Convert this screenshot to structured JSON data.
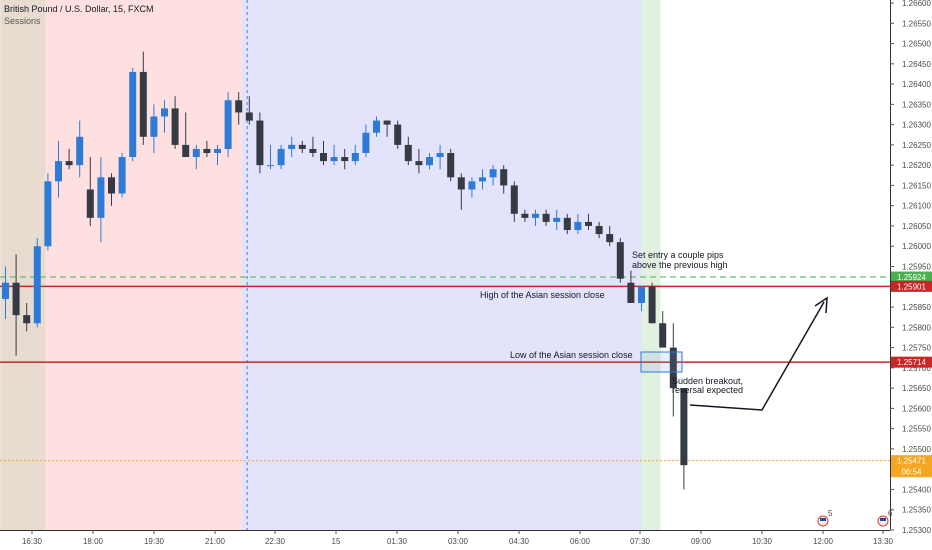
{
  "header": {
    "symbol_line": "British Pound / U.S. Dollar, 15, FXCM",
    "indicator": "Sessions"
  },
  "chart_data": {
    "type": "candlestick",
    "symbol": "British Pound / U.S. Dollar",
    "interval": "15",
    "source": "FXCM",
    "ylim": [
      1.253,
      1.266
    ],
    "y_ticks": [
      "1.26600",
      "1.26550",
      "1.26500",
      "1.26450",
      "1.26400",
      "1.26350",
      "1.26300",
      "1.26250",
      "1.26200",
      "1.26150",
      "1.26100",
      "1.26050",
      "1.26000",
      "1.25950",
      "1.25900",
      "1.25850",
      "1.25800",
      "1.25750",
      "1.25700",
      "1.25650",
      "1.25600",
      "1.25550",
      "1.25500",
      "1.25450",
      "1.25400",
      "1.25350",
      "1.25300"
    ],
    "x_ticks": [
      "16:30",
      "18:00",
      "19:30",
      "21:00",
      "22:30",
      "15",
      "01:30",
      "03:00",
      "04:30",
      "06:00",
      "07:30",
      "09:00",
      "10:30",
      "12:00",
      "13:30"
    ],
    "sessions": [
      {
        "name": "session-1",
        "from": 0,
        "to": 4.3,
        "color": "#e8dcd0"
      },
      {
        "name": "session-2",
        "from": 4.3,
        "to": 22.8,
        "color": "#ffe0e0"
      },
      {
        "name": "session-3",
        "from": 22.8,
        "to": 60.5,
        "color": "#e3e3fb"
      },
      {
        "name": "session-4",
        "from": 60.5,
        "to": 62.3,
        "color": "#e2f0e2"
      }
    ],
    "session_divider_x": 23.3,
    "candles": [
      [
        1.2587,
        1.2595,
        1.2582,
        1.2591
      ],
      [
        1.2591,
        1.2598,
        1.2573,
        1.2583
      ],
      [
        1.2583,
        1.2586,
        1.2579,
        1.2581
      ],
      [
        1.2581,
        1.2602,
        1.258,
        1.26
      ],
      [
        1.26,
        1.2618,
        1.2599,
        1.2616
      ],
      [
        1.2616,
        1.2626,
        1.2612,
        1.2621
      ],
      [
        1.2621,
        1.2624,
        1.2619,
        1.262
      ],
      [
        1.262,
        1.2631,
        1.2617,
        1.2627
      ],
      [
        1.2614,
        1.2622,
        1.2605,
        1.2607
      ],
      [
        1.2607,
        1.2622,
        1.2601,
        1.2617
      ],
      [
        1.2617,
        1.2618,
        1.261,
        1.2613
      ],
      [
        1.2613,
        1.2623,
        1.2612,
        1.2622
      ],
      [
        1.2622,
        1.2644,
        1.2621,
        1.2643
      ],
      [
        1.2643,
        1.2648,
        1.2625,
        1.2627
      ],
      [
        1.2627,
        1.2635,
        1.2623,
        1.2632
      ],
      [
        1.2632,
        1.2636,
        1.2628,
        1.2634
      ],
      [
        1.2634,
        1.2637,
        1.2624,
        1.2625
      ],
      [
        1.2625,
        1.2633,
        1.2622,
        1.2622
      ],
      [
        1.2622,
        1.2625,
        1.2619,
        1.2624
      ],
      [
        1.2624,
        1.2626,
        1.2622,
        1.2623
      ],
      [
        1.2623,
        1.2625,
        1.262,
        1.2624
      ],
      [
        1.2624,
        1.2638,
        1.2622,
        1.2636
      ],
      [
        1.2636,
        1.2638,
        1.263,
        1.2633
      ],
      [
        1.2633,
        1.2637,
        1.263,
        1.2631
      ],
      [
        1.2631,
        1.2633,
        1.2618,
        1.262
      ],
      [
        1.262,
        1.2625,
        1.2619,
        1.262
      ],
      [
        1.262,
        1.2625,
        1.2619,
        1.2624
      ],
      [
        1.2624,
        1.2627,
        1.2622,
        1.2625
      ],
      [
        1.2625,
        1.2626,
        1.2623,
        1.2624
      ],
      [
        1.2624,
        1.2627,
        1.2622,
        1.2623
      ],
      [
        1.2623,
        1.2626,
        1.262,
        1.2621
      ],
      [
        1.2621,
        1.2625,
        1.262,
        1.2622
      ],
      [
        1.2622,
        1.2624,
        1.2619,
        1.2621
      ],
      [
        1.2621,
        1.2625,
        1.262,
        1.2623
      ],
      [
        1.2623,
        1.263,
        1.2622,
        1.2628
      ],
      [
        1.2628,
        1.2632,
        1.2627,
        1.2631
      ],
      [
        1.2631,
        1.2631,
        1.2627,
        1.263
      ],
      [
        1.263,
        1.2631,
        1.2624,
        1.2625
      ],
      [
        1.2625,
        1.2627,
        1.262,
        1.2621
      ],
      [
        1.2621,
        1.2624,
        1.2618,
        1.262
      ],
      [
        1.262,
        1.2623,
        1.2619,
        1.2622
      ],
      [
        1.2622,
        1.2625,
        1.2619,
        1.2623
      ],
      [
        1.2623,
        1.2624,
        1.2616,
        1.2617
      ],
      [
        1.2617,
        1.2618,
        1.2609,
        1.2614
      ],
      [
        1.2614,
        1.2617,
        1.2612,
        1.2616
      ],
      [
        1.2616,
        1.2619,
        1.2614,
        1.2617
      ],
      [
        1.2617,
        1.262,
        1.2615,
        1.2619
      ],
      [
        1.2619,
        1.262,
        1.2613,
        1.2615
      ],
      [
        1.2615,
        1.2616,
        1.2606,
        1.2608
      ],
      [
        1.2608,
        1.2609,
        1.2606,
        1.2607
      ],
      [
        1.2607,
        1.2609,
        1.2605,
        1.2608
      ],
      [
        1.2608,
        1.2609,
        1.2605,
        1.2606
      ],
      [
        1.2606,
        1.2609,
        1.2604,
        1.2607
      ],
      [
        1.2607,
        1.2608,
        1.2603,
        1.2604
      ],
      [
        1.2604,
        1.2608,
        1.2603,
        1.2606
      ],
      [
        1.2606,
        1.2608,
        1.2604,
        1.2605
      ],
      [
        1.2605,
        1.2606,
        1.2602,
        1.2603
      ],
      [
        1.2603,
        1.2605,
        1.26,
        1.2601
      ],
      [
        1.2601,
        1.2602,
        1.2591,
        1.2592
      ],
      [
        1.2591,
        1.2594,
        1.2586,
        1.2586
      ],
      [
        1.2586,
        1.259,
        1.2584,
        1.259
      ],
      [
        1.259,
        1.2591,
        1.2581,
        1.2581
      ],
      [
        1.2581,
        1.2584,
        1.2575,
        1.2575
      ],
      [
        1.2575,
        1.2581,
        1.2558,
        1.2565
      ],
      [
        1.2565,
        1.2565,
        1.254,
        1.2546
      ]
    ],
    "horizontal_lines": [
      {
        "price": 1.25924,
        "label": "1.25924",
        "color": "#4caf50",
        "style": "dashed"
      },
      {
        "price": 1.25901,
        "label": "1.25901",
        "color": "#c62828",
        "style": "solid"
      },
      {
        "price": 1.25714,
        "label": "1.25714",
        "color": "#c62828",
        "style": "solid"
      },
      {
        "price": 1.25471,
        "label": "1.25471",
        "color": "#f5a623",
        "style": "dotted"
      }
    ],
    "price_tag_extra": "06:54",
    "annotations": [
      "Set entry a couple pips",
      "above the previous high",
      "High of the Asian session close",
      "Low of the Asian session close",
      "Sudden breakout,",
      "reversal expected"
    ],
    "event_badges": [
      "5",
      "6"
    ],
    "colors": {
      "up": "#2d7bd6",
      "down": "#363a45",
      "red_line": "#c62828",
      "green_line": "#4caf50"
    }
  }
}
